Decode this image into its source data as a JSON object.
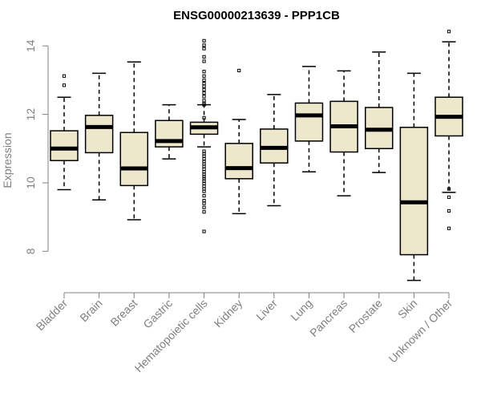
{
  "chart_data": {
    "type": "boxplot",
    "title": "ENSG00000213639 - PPP1CB",
    "xlabel": "",
    "ylabel": "Expression",
    "ylim": [
      7.0,
      14.45
    ],
    "yticks": [
      8,
      10,
      12,
      14
    ],
    "box_fill": "#ede7cc",
    "colors": {
      "axis": "#808080",
      "box_stroke": "#000000",
      "median": "#000000"
    },
    "categories": [
      "Bladder",
      "Brain",
      "Breast",
      "Gastric",
      "Hematopoietic cells",
      "Kidney",
      "Liver",
      "Lung",
      "Pancreas",
      "Prostate",
      "Skin",
      "Unknown / Other"
    ],
    "boxes": [
      {
        "name": "Bladder",
        "whisker_low": 9.8,
        "q1": 10.65,
        "median": 11.0,
        "q3": 11.52,
        "whisker_high": 12.5,
        "outliers": [
          12.85,
          13.12
        ]
      },
      {
        "name": "Brain",
        "whisker_low": 9.5,
        "q1": 10.88,
        "median": 11.63,
        "q3": 11.97,
        "whisker_high": 13.2,
        "outliers": []
      },
      {
        "name": "Breast",
        "whisker_low": 8.92,
        "q1": 9.92,
        "median": 10.42,
        "q3": 11.47,
        "whisker_high": 13.53,
        "outliers": []
      },
      {
        "name": "Gastric",
        "whisker_low": 10.7,
        "q1": 11.05,
        "median": 11.22,
        "q3": 11.82,
        "whisker_high": 12.28,
        "outliers": []
      },
      {
        "name": "Hematopoietic cells",
        "whisker_low": 11.05,
        "q1": 11.42,
        "median": 11.62,
        "q3": 11.77,
        "whisker_high": 12.28,
        "outliers": [
          14.15,
          14.02,
          13.92,
          13.68,
          13.55,
          13.25,
          13.12,
          13.0,
          12.9,
          12.82,
          12.72,
          12.62,
          12.52,
          12.4,
          12.32,
          12.28,
          11.9,
          10.92,
          10.85,
          10.78,
          10.7,
          10.62,
          10.55,
          10.48,
          10.4,
          10.32,
          10.25,
          10.18,
          10.12,
          10.05,
          9.98,
          9.9,
          9.82,
          9.75,
          9.62,
          9.48,
          9.4,
          9.28,
          9.15,
          8.58
        ]
      },
      {
        "name": "Kidney",
        "whisker_low": 9.1,
        "q1": 10.12,
        "median": 10.43,
        "q3": 11.15,
        "whisker_high": 11.85,
        "outliers": [
          13.28
        ]
      },
      {
        "name": "Liver",
        "whisker_low": 9.33,
        "q1": 10.58,
        "median": 11.02,
        "q3": 11.57,
        "whisker_high": 12.58,
        "outliers": []
      },
      {
        "name": "Lung",
        "whisker_low": 10.32,
        "q1": 11.22,
        "median": 11.97,
        "q3": 12.33,
        "whisker_high": 13.4,
        "outliers": []
      },
      {
        "name": "Pancreas",
        "whisker_low": 9.62,
        "q1": 10.9,
        "median": 11.65,
        "q3": 12.38,
        "whisker_high": 13.27,
        "outliers": []
      },
      {
        "name": "Prostate",
        "whisker_low": 10.3,
        "q1": 11.0,
        "median": 11.55,
        "q3": 12.2,
        "whisker_high": 13.82,
        "outliers": []
      },
      {
        "name": "Skin",
        "whisker_low": 7.15,
        "q1": 7.9,
        "median": 9.43,
        "q3": 11.62,
        "whisker_high": 13.2,
        "outliers": []
      },
      {
        "name": "Unknown / Other",
        "whisker_low": 9.72,
        "q1": 11.37,
        "median": 11.93,
        "q3": 12.5,
        "whisker_high": 14.12,
        "outliers": [
          14.42,
          9.82,
          9.58,
          9.18,
          8.67
        ]
      }
    ]
  }
}
